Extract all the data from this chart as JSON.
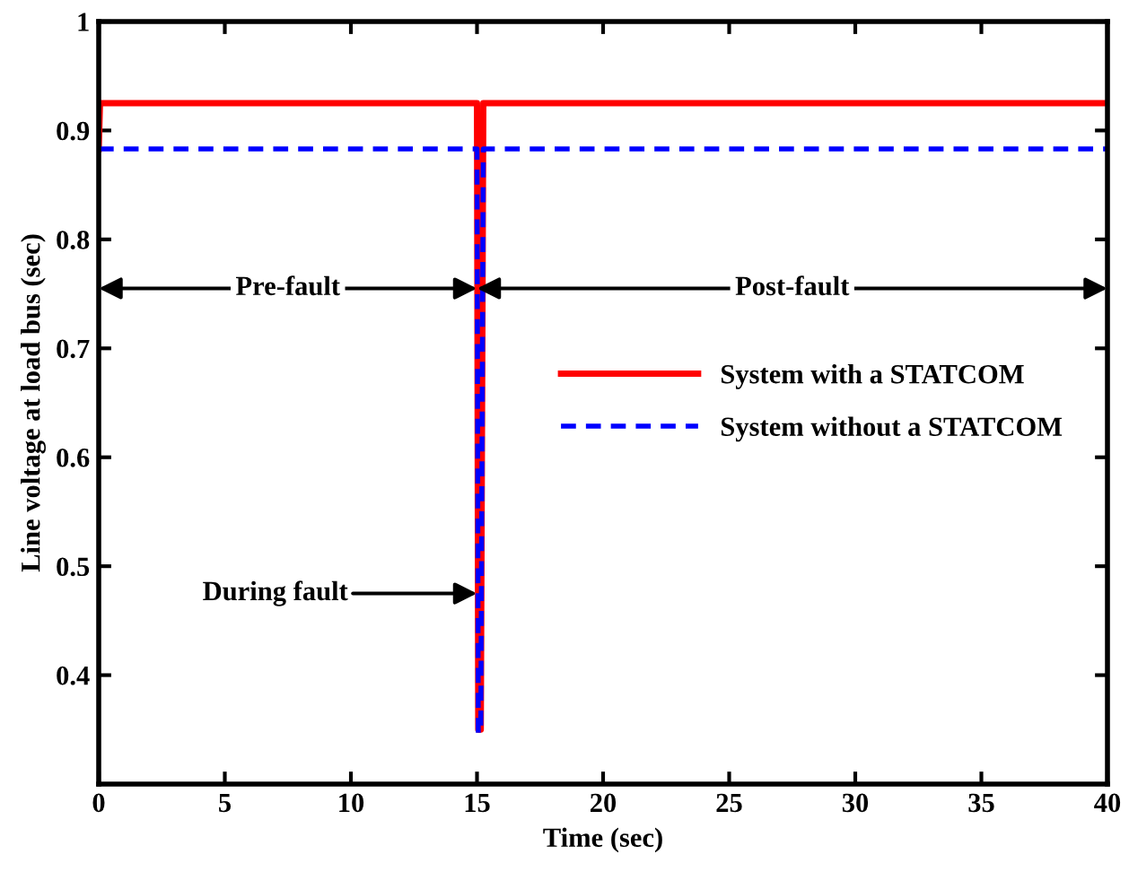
{
  "chart_data": {
    "type": "line",
    "xlabel": "Time (sec)",
    "ylabel": "Line voltage at load bus (sec)",
    "xlim": [
      0,
      40
    ],
    "ylim": [
      0.3,
      1
    ],
    "xticks": [
      0,
      5,
      10,
      15,
      20,
      25,
      30,
      35,
      40
    ],
    "yticks": [
      0.4,
      0.5,
      0.6,
      0.7,
      0.8,
      0.9,
      1
    ],
    "grid": false,
    "legend": "right",
    "series": [
      {
        "name": "System with a STATCOM",
        "color": "#ff0000",
        "line_style": "solid",
        "x": [
          0,
          0.05,
          15,
          15.05,
          15.15,
          15.25,
          40
        ],
        "values": [
          0.883,
          0.925,
          0.925,
          0.35,
          0.35,
          0.925,
          0.925
        ]
      },
      {
        "name": "System without a STATCOM",
        "color": "#0000ff",
        "line_style": "dashed",
        "x": [
          0,
          15,
          15.05,
          15.15,
          15.25,
          40
        ],
        "values": [
          0.883,
          0.883,
          0.347,
          0.347,
          0.883,
          0.883
        ]
      }
    ],
    "annotations": [
      "Pre-fault",
      "Post-fault",
      {
        "text": "During fault",
        "x": 15,
        "y": 0.475
      }
    ]
  }
}
